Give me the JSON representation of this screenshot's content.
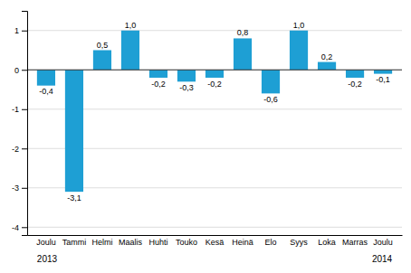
{
  "chart_data": {
    "type": "bar",
    "categories": [
      "Joulu",
      "Tammi",
      "Helmi",
      "Maalis",
      "Huhti",
      "Touko",
      "Kesä",
      "Heinä",
      "Elo",
      "Syys",
      "Loka",
      "Marras",
      "Joulu"
    ],
    "values": [
      -0.4,
      -3.1,
      0.5,
      1.0,
      -0.2,
      -0.3,
      -0.2,
      0.8,
      -0.6,
      1.0,
      0.2,
      -0.2,
      -0.1
    ],
    "value_labels": [
      "-0,4",
      "-3,1",
      "0,5",
      "1,0",
      "-0,2",
      "-0,3",
      "-0,2",
      "0,8",
      "-0,6",
      "1,0",
      "0,2",
      "-0,2",
      "-0,1"
    ],
    "color": "#1e9fd4",
    "ylim": [
      -4.2,
      1.5
    ],
    "yticks": [
      -4,
      -3,
      -2,
      -1,
      0,
      1
    ],
    "grid": true,
    "data_labels": true,
    "annotations": [
      "2013",
      "2014"
    ]
  }
}
